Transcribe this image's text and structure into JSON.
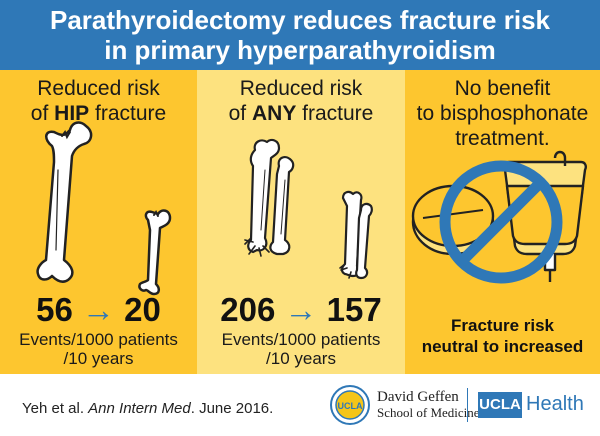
{
  "header": {
    "line1": "Parathyroidectomy reduces fracture risk",
    "line2": "in primary hyperparathyroidism"
  },
  "panels": [
    {
      "title_line1": "Reduced risk",
      "title_pre": "of ",
      "title_bold": "HIP",
      "title_post": " fracture",
      "value_before": "56",
      "arrow": "→",
      "value_after": "20",
      "units_line1": "Events/1000 patients",
      "units_line2": "/10 years",
      "illustration": "femur-bone-fracture-icon"
    },
    {
      "title_line1": "Reduced risk",
      "title_pre": "of ",
      "title_bold": "ANY",
      "title_post": " fracture",
      "value_before": "206",
      "arrow": "→",
      "value_after": "157",
      "units_line1": "Events/1000 patients",
      "units_line2": "/10 years",
      "illustration": "forearm-bones-fracture-icon"
    },
    {
      "title_line1": "No benefit",
      "title_line2": "to bisphosphonate",
      "title_line3": "treatment.",
      "risk_line1": "Fracture risk",
      "risk_line2": "neutral to increased",
      "illustration": "pill-and-iv-bag-prohibited-icon"
    }
  ],
  "footer": {
    "citation_pre": "Yeh et al. ",
    "citation_journal": "Ann Intern Med",
    "citation_post": ". June 2016.",
    "seal_text": "UCLA",
    "school_line1": "David Geffen",
    "school_line2": "School of Medicine",
    "ucla_box": "UCLA",
    "health": "Health"
  },
  "colors": {
    "header_blue": "#2f78b7",
    "panel_gold": "#fdc62f",
    "panel_light": "#fde27f",
    "arrow_blue": "#2f78b7"
  }
}
